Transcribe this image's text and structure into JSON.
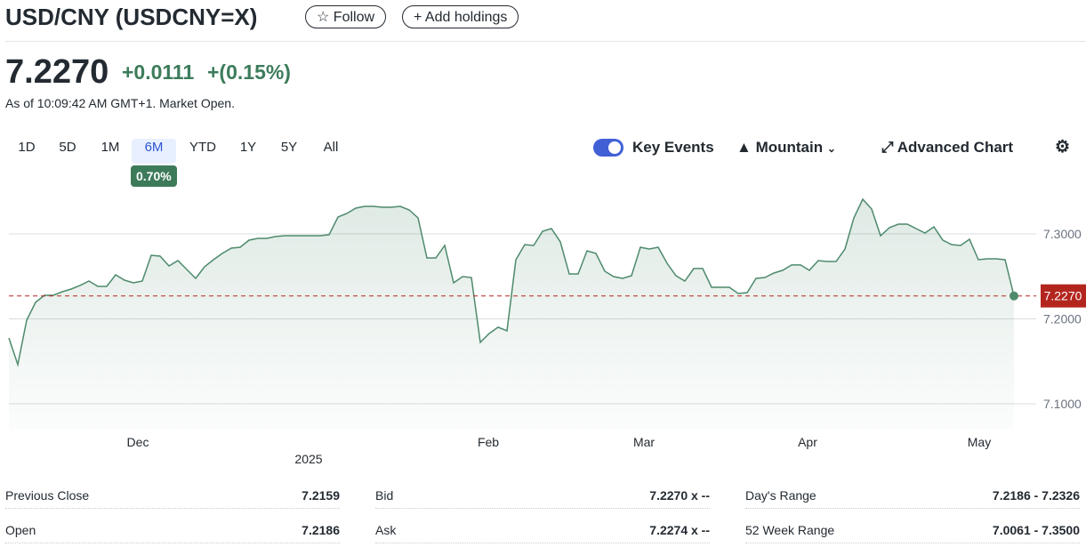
{
  "header": {
    "title": "USD/CNY (USDCNY=X)",
    "follow": "Follow",
    "add_holdings": "Add holdings"
  },
  "quote": {
    "price": "7.2270",
    "change": "+0.0111",
    "change_pct": "+(0.15%)",
    "as_of": "As of 10:09:42 AM GMT+1. Market Open."
  },
  "ranges": [
    "1D",
    "5D",
    "1M",
    "6M",
    "YTD",
    "1Y",
    "5Y",
    "All"
  ],
  "range_change": "0.70%",
  "toolbar": {
    "key_events": "Key Events",
    "chart_style": "Mountain",
    "advanced_chart": "Advanced Chart"
  },
  "chart_data": {
    "type": "area",
    "color": "#4e8a6c",
    "values": [
      7.1775,
      7.1461,
      7.1984,
      7.2194,
      7.2277,
      7.2277,
      7.2319,
      7.2351,
      7.2393,
      7.2445,
      7.2382,
      7.2382,
      7.2518,
      7.2455,
      7.2424,
      7.2445,
      7.2749,
      7.2738,
      7.2623,
      7.2686,
      7.2581,
      7.2476,
      7.2613,
      7.2696,
      7.277,
      7.2832,
      7.2843,
      7.2927,
      7.2948,
      7.2948,
      7.2969,
      7.2979,
      7.2979,
      7.2979,
      7.2979,
      7.2979,
      7.299,
      7.3199,
      7.3241,
      7.3304,
      7.3325,
      7.3325,
      7.3314,
      7.3314,
      7.3325,
      7.3283,
      7.3188,
      7.2717,
      7.2717,
      7.2864,
      7.2424,
      7.2497,
      7.2487,
      7.1723,
      7.1827,
      7.1901,
      7.1859,
      7.2696,
      7.2874,
      7.2864,
      7.3031,
      7.3063,
      7.2906,
      7.2529,
      7.2529,
      7.2801,
      7.277,
      7.256,
      7.2497,
      7.2476,
      7.2508,
      7.2843,
      7.2822,
      7.2843,
      7.2654,
      7.2508,
      7.2445,
      7.2592,
      7.2592,
      7.2372,
      7.2372,
      7.2372,
      7.2298,
      7.2309,
      7.2476,
      7.2487,
      7.2539,
      7.2571,
      7.2634,
      7.2634,
      7.2571,
      7.2686,
      7.2675,
      7.2675,
      7.2822,
      7.3188,
      7.3408,
      7.3293,
      7.2979,
      7.3073,
      7.3115,
      7.3115,
      7.3063,
      7.301,
      7.3084,
      7.2927,
      7.2874,
      7.2864,
      7.2937,
      7.2696,
      7.2707,
      7.2707,
      7.2696,
      7.227
    ],
    "xlim": [
      0,
      113
    ],
    "xticks": [
      {
        "value": 14.5,
        "label": "Dec"
      },
      {
        "value": 53.9,
        "label": "Feb"
      },
      {
        "value": 71.4,
        "label": "Mar"
      },
      {
        "value": 89.8,
        "label": "Apr"
      },
      {
        "value": 109.1,
        "label": "May"
      }
    ],
    "year_ticks": [
      {
        "value": 33.7,
        "label": "2025"
      }
    ],
    "ylim": [
      7.07,
      7.38
    ],
    "yticks": [
      {
        "value": 7.1,
        "label": "7.1000"
      },
      {
        "value": 7.2,
        "label": "7.2000"
      },
      {
        "value": 7.3,
        "label": "7.3000"
      }
    ],
    "grid": true,
    "current": {
      "value": 7.227,
      "label": "7.2270",
      "color": "#b3261e"
    }
  },
  "stats": {
    "rows": [
      [
        [
          "Previous Close",
          "7.2159"
        ],
        [
          "Bid",
          "7.2270 x --"
        ],
        [
          "Day's Range",
          "7.2186 - 7.2326"
        ]
      ],
      [
        [
          "Open",
          "7.2186"
        ],
        [
          "Ask",
          "7.2274 x --"
        ],
        [
          "52 Week Range",
          "7.0061 - 7.3500"
        ]
      ]
    ]
  }
}
